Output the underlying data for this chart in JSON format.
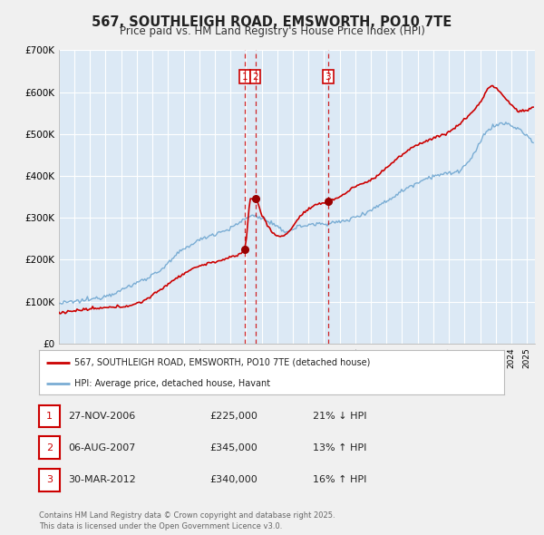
{
  "title": "567, SOUTHLEIGH ROAD, EMSWORTH, PO10 7TE",
  "subtitle": "Price paid vs. HM Land Registry's House Price Index (HPI)",
  "title_fontsize": 10.5,
  "subtitle_fontsize": 8.5,
  "background_color": "#f0f0f0",
  "plot_bg_color": "#dce9f5",
  "red_line_color": "#cc0000",
  "blue_line_color": "#7aadd4",
  "grid_color": "#ffffff",
  "ylim": [
    0,
    700000
  ],
  "yticks": [
    0,
    100000,
    200000,
    300000,
    400000,
    500000,
    600000,
    700000
  ],
  "ytick_labels": [
    "£0",
    "£100K",
    "£200K",
    "£300K",
    "£400K",
    "£500K",
    "£600K",
    "£700K"
  ],
  "xmin": 1995.0,
  "xmax": 2025.5,
  "transactions": [
    {
      "id": 1,
      "date_num": 2006.91,
      "price": 225000,
      "label": "1"
    },
    {
      "id": 2,
      "date_num": 2007.59,
      "price": 345000,
      "label": "2"
    },
    {
      "id": 3,
      "date_num": 2012.25,
      "price": 340000,
      "label": "3"
    }
  ],
  "legend_items": [
    {
      "label": "567, SOUTHLEIGH ROAD, EMSWORTH, PO10 7TE (detached house)",
      "color": "#cc0000"
    },
    {
      "label": "HPI: Average price, detached house, Havant",
      "color": "#7aadd4"
    }
  ],
  "table_rows": [
    {
      "id": "1",
      "date": "27-NOV-2006",
      "price": "£225,000",
      "hpi": "21% ↓ HPI"
    },
    {
      "id": "2",
      "date": "06-AUG-2007",
      "price": "£345,000",
      "hpi": "13% ↑ HPI"
    },
    {
      "id": "3",
      "date": "30-MAR-2012",
      "price": "£340,000",
      "hpi": "16% ↑ HPI"
    }
  ],
  "footer": "Contains HM Land Registry data © Crown copyright and database right 2025.\nThis data is licensed under the Open Government Licence v3.0."
}
